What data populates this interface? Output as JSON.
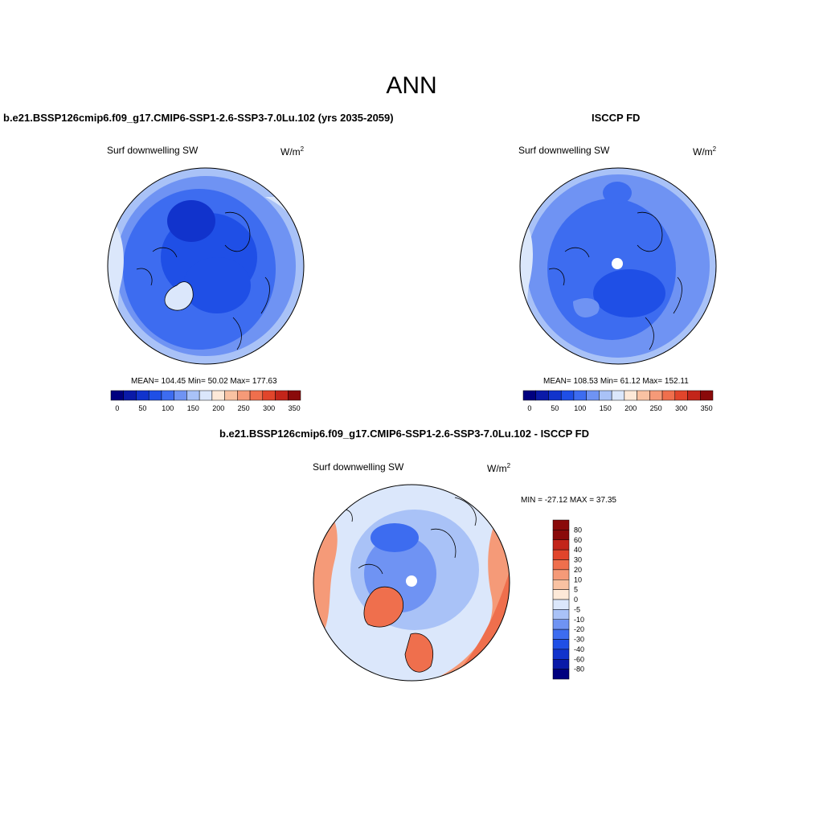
{
  "main_title": "ANN",
  "panels": [
    {
      "title": "b.e21.BSSP126cmip6.f09_g17.CMIP6-SSP1-2.6-SSP3-7.0Lu.102 (yrs 2035-2059)",
      "variable": "Surf downwelling SW",
      "units_base": "W/m",
      "units_exp": "2",
      "stats": "MEAN= 104.45  Min=  50.02  Max= 177.63"
    },
    {
      "title": "ISCCP FD",
      "variable": "Surf downwelling SW",
      "units_base": "W/m",
      "units_exp": "2",
      "stats": "MEAN= 108.53  Min=  61.12  Max= 152.11"
    },
    {
      "title": "b.e21.BSSP126cmip6.f09_g17.CMIP6-SSP1-2.6-SSP3-7.0Lu.102 - ISCCP FD",
      "variable": "Surf downwelling SW",
      "units_base": "W/m",
      "units_exp": "2",
      "stats": "MIN = -27.12 MAX =  37.35"
    }
  ],
  "abs_colorbar": {
    "colors": [
      "#00007f",
      "#0a1aa8",
      "#1133cc",
      "#1f4fe6",
      "#3d6cf0",
      "#6f93f3",
      "#a9c2f7",
      "#dbe7fb",
      "#fde9d8",
      "#f9c2a2",
      "#f59a78",
      "#ef6f4d",
      "#e1452b",
      "#c3251a",
      "#8a0a0a"
    ],
    "tick_labels": [
      "0",
      "50",
      "100",
      "150",
      "200",
      "250",
      "300",
      "350"
    ]
  },
  "diff_colorbar": {
    "colors": [
      "#8a0a0a",
      "#c3251a",
      "#e1452b",
      "#ef6f4d",
      "#f59a78",
      "#f9c2a2",
      "#fde9d8",
      "#dbe7fb",
      "#a9c2f7",
      "#6f93f3",
      "#3d6cf0",
      "#1f4fe6",
      "#1133cc",
      "#0a1aa8",
      "#00007f"
    ],
    "tick_labels": [
      "80",
      "60",
      "40",
      "30",
      "20",
      "10",
      "5",
      "0",
      "-5",
      "-10",
      "-20",
      "-30",
      "-40",
      "-60",
      "-80"
    ]
  }
}
